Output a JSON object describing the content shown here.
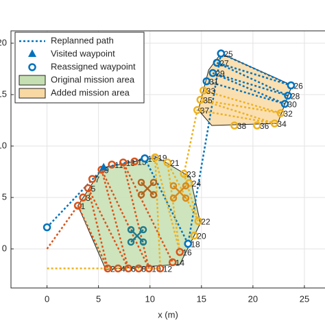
{
  "chart_data": {
    "type": "line",
    "xlabel": "x (m)",
    "xlim": [
      -3.5,
      27
    ],
    "ylim": [
      -3.8,
      21.2
    ],
    "xticks": [
      0,
      5,
      10,
      15,
      20,
      25
    ],
    "yticks": [
      0,
      5,
      10,
      15,
      20
    ],
    "grid": true,
    "legend": "upper left",
    "areas": [
      {
        "name": "Original mission area",
        "color": "#c5dfb2",
        "x": [
          3,
          5.4,
          10.7,
          13.9,
          14.9,
          12.9,
          5.7
        ],
        "values": [
          4.2,
          7.9,
          8.9,
          7,
          2.5,
          -1.5,
          -2
        ]
      },
      {
        "name": "Added mission area",
        "color": "#f9d9a3",
        "x": [
          14.7,
          15.7,
          16.9,
          23.8,
          22.4,
          16
        ],
        "values": [
          13.5,
          17.4,
          19,
          15.9,
          12.2,
          12
        ]
      }
    ],
    "series": [
      {
        "name": "Replanned path",
        "color": "#0072bd",
        "style": "dotted",
        "x": [
          0,
          5.5,
          9.5,
          13.7,
          16.9,
          23.7,
          16.5,
          23.4,
          16.1,
          23.1,
          15.5
        ],
        "values": [
          2.1,
          7.9,
          8.8,
          0.5,
          19,
          15.9,
          18.1,
          14.9,
          17.1,
          14.1,
          16.3
        ]
      },
      {
        "color": "#d95319",
        "style": "dotted",
        "x": [
          0,
          3,
          5.9,
          4,
          7.9,
          5.3,
          9.9,
          7.4,
          12.2
        ],
        "values": [
          0,
          4.2,
          -1.9,
          5.9,
          -1.9,
          7.7,
          -1.9,
          8.4,
          -1.3
        ]
      },
      {
        "color": "#edb120",
        "style": "dotted",
        "x": [
          0,
          11,
          10.5,
          12.9,
          11.7,
          14.7,
          13.3,
          14.6,
          22.1,
          14.9,
          22.7,
          15.2
        ],
        "values": [
          -1.9,
          -1.9,
          8.9,
          -0.3,
          8.4,
          2.7,
          7.3,
          13.5,
          12.2,
          14.5,
          13.2,
          15.4
        ]
      },
      {
        "name": "Visited waypoint",
        "color": "#0072bd",
        "marker": "triangle",
        "x": [
          5.5
        ],
        "values": [
          7.9
        ]
      },
      {
        "name": "Reassigned waypoint",
        "color": "#0072bd",
        "marker": "circle",
        "x": [
          0,
          9.5,
          13.7,
          16.9,
          23.7
        ],
        "values": [
          2.1,
          8.8,
          0.5,
          19,
          15.9
        ]
      }
    ],
    "waypoints": {
      "labels": [
        1,
        2,
        3,
        4,
        5,
        6,
        7,
        8,
        9,
        10,
        11,
        12,
        13,
        14,
        15,
        16,
        17,
        18,
        19,
        20,
        21,
        22,
        23,
        24,
        25,
        26,
        27,
        28,
        29,
        30,
        31,
        32,
        33,
        34,
        35,
        36,
        37,
        38
      ],
      "x": [
        3,
        5.9,
        3.5,
        6.9,
        4,
        7.9,
        4.4,
        8.9,
        5.3,
        9.9,
        6.3,
        11,
        7.4,
        12.2,
        8.5,
        12.9,
        9.5,
        13.7,
        10.5,
        14.3,
        11.7,
        14.7,
        13.3,
        13.8,
        16.9,
        23.7,
        16.5,
        23.4,
        16.1,
        23.1,
        15.5,
        22.7,
        15.2,
        22.1,
        14.9,
        20.4,
        14.6,
        18.2
      ],
      "y": [
        4.2,
        -1.9,
        5,
        -1.9,
        5.9,
        -1.9,
        6.8,
        -1.9,
        7.7,
        -1.9,
        8.2,
        -1.9,
        8.4,
        -1.3,
        8.5,
        -0.3,
        8.8,
        0.5,
        8.9,
        1.3,
        8.4,
        2.7,
        7.3,
        6.4,
        19,
        15.9,
        18.1,
        14.9,
        17.1,
        14.1,
        16.3,
        13.2,
        15.4,
        12.2,
        14.5,
        12,
        13.5,
        12
      ],
      "colors": [
        "#d95319",
        "#d95319",
        "#d95319",
        "#d95319",
        "#d95319",
        "#d95319",
        "#d95319",
        "#d95319",
        "#d95319",
        "#d95319",
        "#d95319",
        "#d95319",
        "#d95319",
        "#d95319",
        "#d95319",
        "#d95319",
        "#0072bd",
        "#0072bd",
        "#edb120",
        "#edb120",
        "#edb120",
        "#edb120",
        "#edb120",
        "#edb120",
        "#0072bd",
        "#0072bd",
        "#0072bd",
        "#0072bd",
        "#0072bd",
        "#0072bd",
        "#0072bd",
        "#edb120",
        "#edb120",
        "#edb120",
        "#edb120",
        "#edb120",
        "#edb120",
        "#edb120"
      ]
    }
  }
}
